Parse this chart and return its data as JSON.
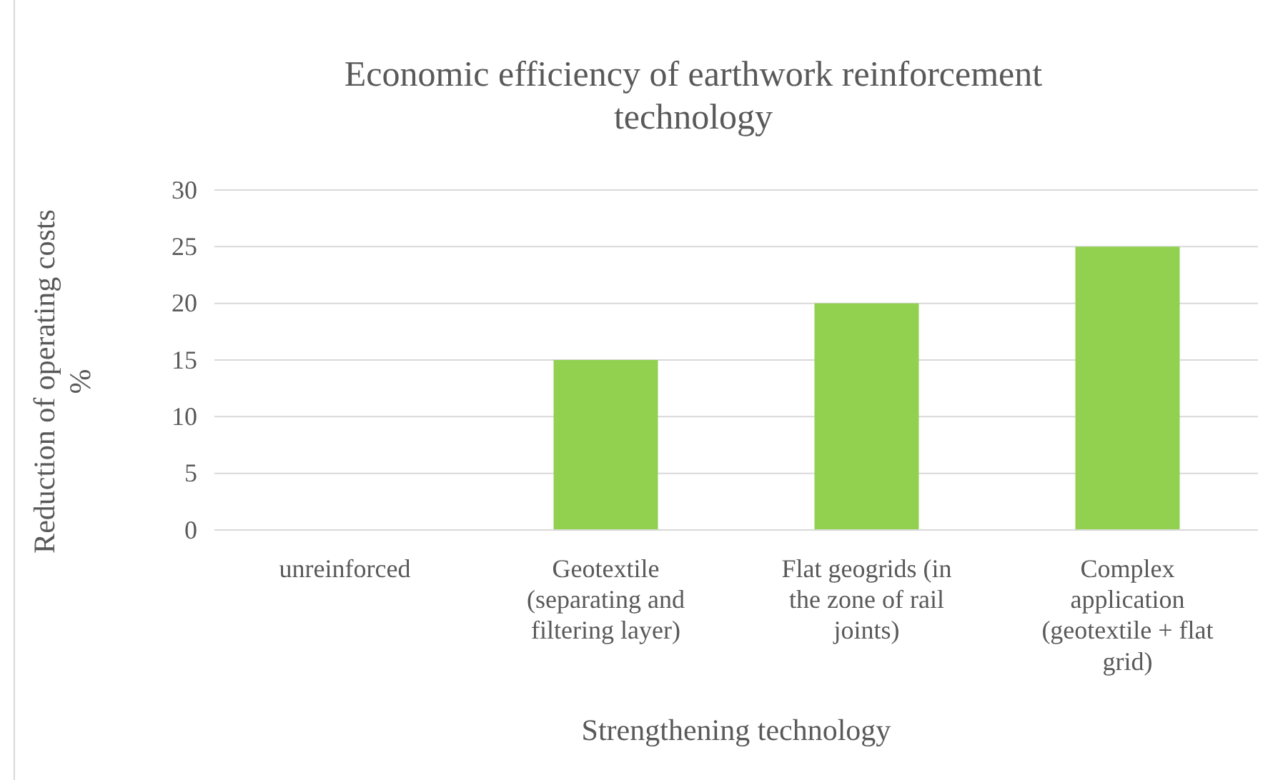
{
  "chart_data": {
    "type": "bar",
    "title": "Economic efficiency of earthwork reinforcement technology",
    "xlabel": "Strengthening technology",
    "ylabel": "Reduction of operating costs %",
    "categories": [
      "unreinforced",
      "Geotextile (separating and filtering layer)",
      "Flat geogrids (in the zone of rail joints)",
      "Complex application (geotextile + flat grid)"
    ],
    "values": [
      0,
      15,
      20,
      25
    ],
    "color": "#92d050",
    "ylim": [
      0,
      30
    ],
    "yticks": [
      0,
      5,
      10,
      15,
      20,
      25,
      30
    ],
    "grid": "y"
  }
}
